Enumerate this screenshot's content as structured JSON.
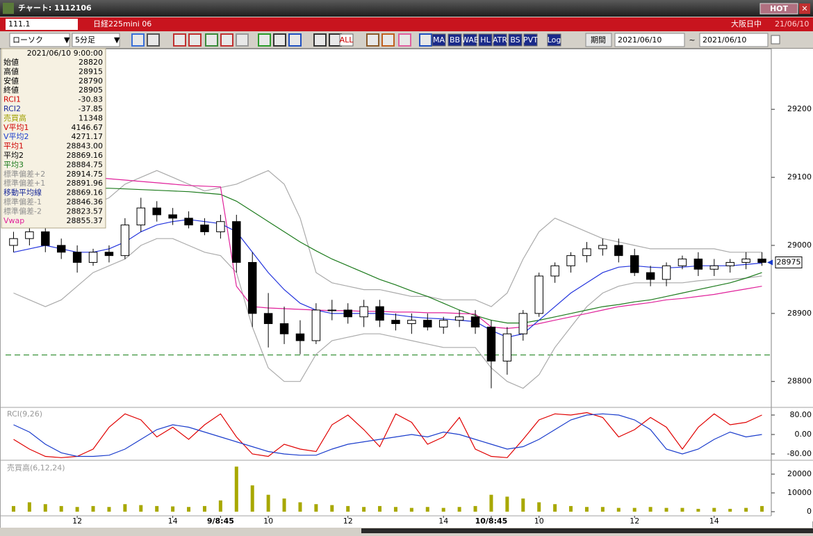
{
  "window": {
    "title": "チャート: 1112106",
    "hot": "HOT"
  },
  "header": {
    "code": "111.1",
    "name": "日経225mini 06",
    "session": "大阪日中",
    "date": "21/06/10"
  },
  "toolbar": {
    "chart_type": "ローソク",
    "interval": "5分足",
    "icons": [
      "ALL",
      "MA",
      "BB",
      "WAE",
      "HL",
      "ATR",
      "BS",
      "PVT",
      "Log"
    ],
    "period": "期間",
    "from": "2021/06/10",
    "separator": "~",
    "to": "2021/06/10"
  },
  "info_panel": {
    "datetime": "2021/06/10 9:00:00",
    "rows": [
      {
        "label": "始値",
        "value": "28820",
        "color": "#000000"
      },
      {
        "label": "高値",
        "value": "28915",
        "color": "#000000"
      },
      {
        "label": "安値",
        "value": "28790",
        "color": "#000000"
      },
      {
        "label": "終値",
        "value": "28905",
        "color": "#000000"
      },
      {
        "label": "RCI1",
        "value": "-30.83",
        "color": "#d00000"
      },
      {
        "label": "RCI2",
        "value": "-37.85",
        "color": "#1a2a9a"
      },
      {
        "label": "売買高",
        "value": "11348",
        "color": "#a0a000"
      },
      {
        "label": "V平均1",
        "value": "4146.67",
        "color": "#d00000"
      },
      {
        "label": "V平均2",
        "value": "4271.17",
        "color": "#1a3ccc"
      },
      {
        "label": "平均1",
        "value": "28843.00",
        "color": "#d00000"
      },
      {
        "label": "平均2",
        "value": "28869.16",
        "color": "#000000"
      },
      {
        "label": "平均3",
        "value": "28884.75",
        "color": "#1b7a1b"
      },
      {
        "label": "標準偏差+2",
        "value": "28914.75",
        "color": "#909090"
      },
      {
        "label": "標準偏差+1",
        "value": "28891.96",
        "color": "#909090"
      },
      {
        "label": "移動平均線",
        "value": "28869.16",
        "color": "#1a2a9a"
      },
      {
        "label": "標準偏差-1",
        "value": "28846.36",
        "color": "#909090"
      },
      {
        "label": "標準偏差-2",
        "value": "28823.57",
        "color": "#909090"
      },
      {
        "label": "Vwap",
        "value": "28855.37",
        "color": "#e0209a"
      }
    ]
  },
  "chart_data": [
    {
      "type": "candlestick",
      "categories": [
        null,
        null,
        null,
        null,
        "12",
        null,
        null,
        null,
        null,
        null,
        "14",
        null,
        null,
        "9/8:45",
        null,
        null,
        "10",
        null,
        null,
        null,
        null,
        "12",
        null,
        null,
        null,
        null,
        null,
        "14",
        null,
        null,
        "10/8:45",
        null,
        null,
        "10",
        null,
        null,
        null,
        null,
        null,
        "12",
        null,
        null,
        null,
        null,
        "14",
        null,
        null,
        null
      ],
      "open": [
        29000,
        29010,
        29020,
        29000,
        28990,
        28975,
        28990,
        28985,
        29030,
        29055,
        29045,
        29040,
        29030,
        29020,
        29035,
        28975,
        28900,
        28885,
        28870,
        28860,
        28905,
        28905,
        28895,
        28910,
        28890,
        28885,
        28890,
        28880,
        28890,
        28895,
        28880,
        28830,
        28870,
        28900,
        28955,
        28970,
        28985,
        28995,
        29000,
        28985,
        28960,
        28950,
        28970,
        28980,
        28965,
        28970,
        28975,
        28980
      ],
      "high": [
        29020,
        29030,
        29030,
        29010,
        29000,
        28995,
        29000,
        29040,
        29070,
        29065,
        29055,
        29050,
        29040,
        29045,
        29045,
        28990,
        28930,
        28910,
        28890,
        28915,
        28920,
        28915,
        28920,
        28920,
        28900,
        28900,
        28900,
        28895,
        28905,
        28905,
        28890,
        28880,
        28905,
        28960,
        28975,
        28990,
        29005,
        29010,
        29010,
        28995,
        28970,
        28975,
        28985,
        28990,
        28980,
        28980,
        28990,
        28990
      ],
      "low": [
        28990,
        29000,
        28990,
        28980,
        28960,
        28970,
        28975,
        28980,
        29020,
        29035,
        29030,
        29025,
        29015,
        29010,
        28960,
        28880,
        28850,
        28855,
        28840,
        28855,
        28890,
        28885,
        28880,
        28880,
        28875,
        28870,
        28875,
        28870,
        28880,
        28870,
        28790,
        28810,
        28860,
        28895,
        28945,
        28960,
        28975,
        28985,
        28975,
        28955,
        28940,
        28940,
        28965,
        28955,
        28955,
        28960,
        28965,
        28970
      ],
      "close": [
        29010,
        29020,
        29000,
        28990,
        28975,
        28990,
        28985,
        29030,
        29055,
        29045,
        29040,
        29030,
        29020,
        29035,
        28975,
        28900,
        28885,
        28870,
        28860,
        28905,
        28905,
        28895,
        28910,
        28890,
        28885,
        28890,
        28880,
        28890,
        28895,
        28880,
        28830,
        28870,
        28900,
        28955,
        28970,
        28985,
        28995,
        29000,
        28985,
        28960,
        28950,
        28970,
        28980,
        28965,
        28970,
        28975,
        28980,
        28975
      ],
      "lines": [
        {
          "color": "#aaaaaa",
          "values": [
            29060,
            29080,
            29090,
            29080,
            29070,
            29060,
            29070,
            29090,
            29100,
            29110,
            29100,
            29090,
            29080,
            29085,
            29090,
            29100,
            29110,
            29090,
            29040,
            28960,
            28945,
            28940,
            28935,
            28935,
            28930,
            28925,
            28925,
            28920,
            28920,
            28920,
            28910,
            28930,
            28980,
            29020,
            29040,
            29030,
            29020,
            29010,
            29005,
            29000,
            28995,
            28995,
            28995,
            28995,
            28995,
            28990,
            28990,
            28990
          ]
        },
        {
          "color": "#aaaaaa",
          "values": [
            28930,
            28920,
            28910,
            28920,
            28940,
            28960,
            28970,
            28980,
            29000,
            29010,
            29010,
            29000,
            28990,
            28985,
            28960,
            28880,
            28820,
            28800,
            28800,
            28840,
            28860,
            28865,
            28870,
            28870,
            28865,
            28860,
            28855,
            28850,
            28850,
            28850,
            28820,
            28800,
            28790,
            28810,
            28850,
            28880,
            28910,
            28930,
            28940,
            28945,
            28945,
            28945,
            28945,
            28948,
            28950,
            28950,
            28952,
            28955
          ]
        },
        {
          "color": "#1b7a1b",
          "values": [
            29080,
            29082,
            29083,
            29084,
            29084,
            29084,
            29084,
            29083,
            29082,
            29081,
            29080,
            29079,
            29077,
            29075,
            29065,
            29050,
            29035,
            29020,
            29005,
            28992,
            28980,
            28970,
            28960,
            28950,
            28942,
            28933,
            28925,
            28915,
            28905,
            28897,
            28890,
            28886,
            28886,
            28890,
            28895,
            28900,
            28905,
            28910,
            28913,
            28917,
            28920,
            28925,
            28930,
            28935,
            28940,
            28945,
            28952,
            28960
          ]
        },
        {
          "color": "#e0209a",
          "values": [
            29110,
            29108,
            29106,
            29104,
            29102,
            29100,
            29098,
            29096,
            29094,
            29092,
            29090,
            29088,
            29087,
            29086,
            28940,
            28910,
            28908,
            28907,
            28906,
            28905,
            28904,
            28904,
            28903,
            28903,
            28902,
            28902,
            28901,
            28901,
            28900,
            28899,
            28880,
            28878,
            28880,
            28885,
            28890,
            28895,
            28900,
            28905,
            28910,
            28913,
            28916,
            28920,
            28922,
            28925,
            28928,
            28932,
            28936,
            28940
          ]
        },
        {
          "color": "#2233dd",
          "values": [
            28990,
            28995,
            29000,
            28995,
            28990,
            28990,
            28995,
            29005,
            29020,
            29030,
            29035,
            29038,
            29035,
            29032,
            29020,
            28990,
            28960,
            28935,
            28915,
            28905,
            28900,
            28900,
            28900,
            28900,
            28898,
            28895,
            28893,
            28892,
            28890,
            28888,
            28875,
            28865,
            28870,
            28890,
            28910,
            28930,
            28945,
            28960,
            28968,
            28970,
            28968,
            28967,
            28968,
            28970,
            28970,
            28970,
            28972,
            28974
          ]
        }
      ],
      "reference_line": {
        "value": 28839,
        "color": "#2a8a2a"
      },
      "up_color": "#ffffff",
      "down_color": "#000000",
      "ylim": [
        28765,
        29284
      ],
      "yticks": [
        28800,
        28900,
        29000,
        29100,
        29200
      ]
    },
    {
      "type": "line",
      "title": "RCI(9,26)",
      "series": [
        {
          "color": "#e00000",
          "values": [
            -20,
            -60,
            -90,
            -95,
            -90,
            -60,
            30,
            85,
            60,
            -10,
            30,
            -20,
            40,
            85,
            -10,
            -80,
            -90,
            -40,
            -60,
            -70,
            40,
            80,
            20,
            -50,
            85,
            50,
            -40,
            -10,
            70,
            -60,
            -90,
            -95,
            -20,
            60,
            85,
            80,
            90,
            70,
            -10,
            20,
            70,
            30,
            -60,
            30,
            85,
            40,
            50,
            80
          ]
        },
        {
          "color": "#1a3ccc",
          "values": [
            40,
            10,
            -40,
            -75,
            -90,
            -90,
            -85,
            -60,
            -20,
            20,
            40,
            30,
            10,
            -10,
            -30,
            -50,
            -70,
            -80,
            -85,
            -85,
            -60,
            -40,
            -30,
            -20,
            -10,
            0,
            -10,
            10,
            0,
            -20,
            -40,
            -60,
            -50,
            -20,
            20,
            60,
            80,
            85,
            80,
            60,
            20,
            -60,
            -80,
            -60,
            -20,
            10,
            -10,
            0
          ]
        }
      ],
      "ylim": [
        -100,
        100
      ],
      "yticks": [
        {
          "value": 80,
          "label": "80.00"
        },
        {
          "value": 0,
          "label": "0.00"
        },
        {
          "value": -80,
          "label": "-80.00"
        }
      ]
    },
    {
      "type": "bar",
      "title": "売買高(6,12,24)",
      "color": "#a8a800",
      "values": [
        3000,
        5000,
        4000,
        3000,
        2500,
        3000,
        2500,
        4000,
        3500,
        3000,
        2800,
        2500,
        3000,
        6000,
        24000,
        14000,
        9000,
        7000,
        5000,
        4000,
        3500,
        3000,
        2500,
        3000,
        2500,
        2000,
        2500,
        2000,
        2500,
        3000,
        9000,
        8000,
        7000,
        5000,
        4000,
        3000,
        2500,
        2500,
        2000,
        2000,
        2500,
        2000,
        2000,
        1500,
        2000,
        1500,
        2000,
        3000
      ],
      "ylim": [
        0,
        25000
      ],
      "yticks": [
        0,
        10000,
        20000
      ]
    }
  ]
}
